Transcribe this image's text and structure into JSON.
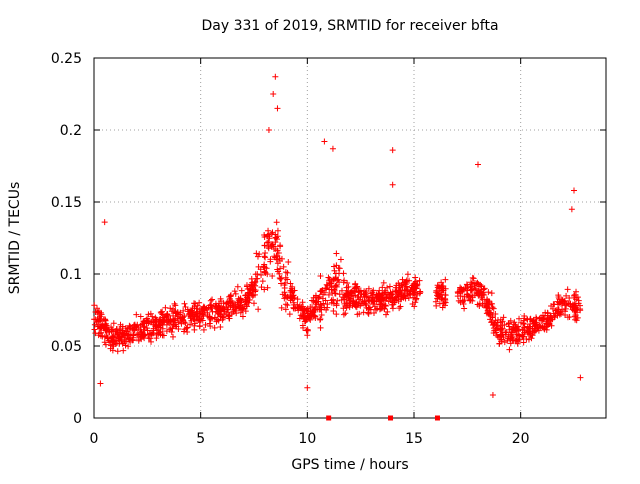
{
  "chart_data": {
    "type": "scatter",
    "title": "Day 331 of 2019, SRMTID for receiver bfta",
    "xlabel": "GPS time / hours",
    "ylabel": "SRMTID / TECUs",
    "xlim": [
      0,
      24
    ],
    "ylim": [
      0,
      0.25
    ],
    "xticks": [
      0,
      5,
      10,
      15,
      20
    ],
    "yticks": [
      0,
      0.05,
      0.1,
      0.15,
      0.2,
      0.25
    ],
    "grid": true,
    "marker": "+",
    "color": "#ff0000",
    "series": [
      {
        "name": "SRMTID",
        "approx_trend": {
          "x": [
            0,
            1,
            2,
            3,
            4,
            5,
            6,
            7,
            7.5,
            8,
            8.5,
            9,
            10,
            11,
            12,
            13,
            14,
            15,
            17,
            18,
            19,
            20,
            21,
            22,
            22.8
          ],
          "y": [
            0.07,
            0.055,
            0.06,
            0.065,
            0.07,
            0.072,
            0.075,
            0.08,
            0.09,
            0.11,
            0.12,
            0.09,
            0.07,
            0.09,
            0.085,
            0.08,
            0.085,
            0.09,
            0.085,
            0.09,
            0.06,
            0.06,
            0.065,
            0.08,
            0.075
          ]
        },
        "notable_points": [
          {
            "x": 0.5,
            "y": 0.136
          },
          {
            "x": 8.5,
            "y": 0.237
          },
          {
            "x": 8.4,
            "y": 0.225
          },
          {
            "x": 8.6,
            "y": 0.215
          },
          {
            "x": 8.2,
            "y": 0.2
          },
          {
            "x": 10.8,
            "y": 0.192
          },
          {
            "x": 11.2,
            "y": 0.187
          },
          {
            "x": 14.0,
            "y": 0.186
          },
          {
            "x": 14.0,
            "y": 0.162
          },
          {
            "x": 18.0,
            "y": 0.176
          },
          {
            "x": 22.5,
            "y": 0.158
          },
          {
            "x": 22.4,
            "y": 0.145
          },
          {
            "x": 10.0,
            "y": 0.021
          },
          {
            "x": 18.7,
            "y": 0.016
          },
          {
            "x": 0.3,
            "y": 0.024
          },
          {
            "x": 22.8,
            "y": 0.028
          }
        ]
      }
    ],
    "data_gaps_hours": [
      [
        15.3,
        16.0
      ],
      [
        16.5,
        17.0
      ]
    ],
    "bottom_markers_x": [
      11.0,
      13.9,
      16.1
    ]
  }
}
